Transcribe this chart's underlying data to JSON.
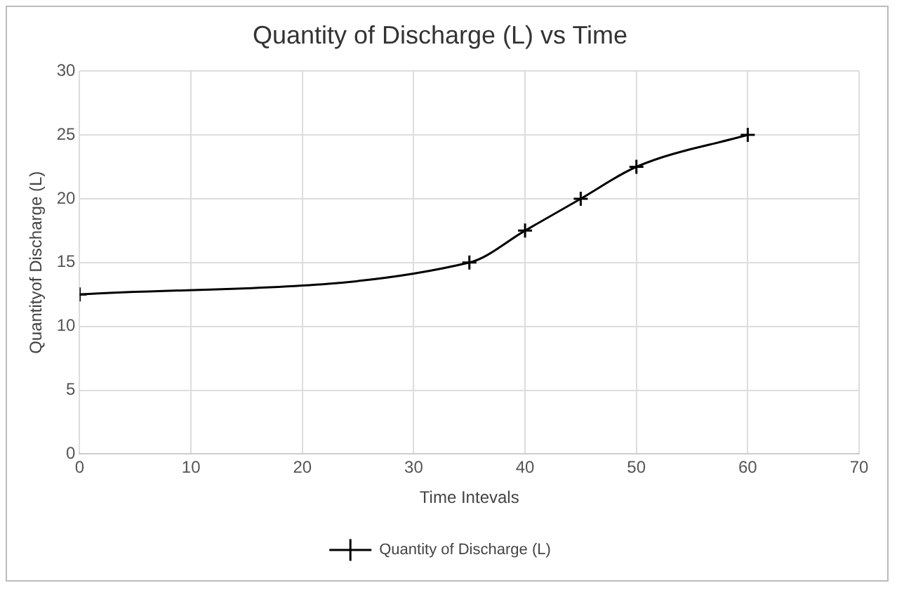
{
  "chart_data": {
    "type": "line",
    "title": "Quantity of Discharge (L) vs Time",
    "xlabel": "Time Intevals",
    "ylabel": "Quantityof Discharge (L)",
    "x": [
      0,
      35,
      40,
      45,
      50,
      60
    ],
    "series": [
      {
        "name": "Quantity of Discharge (L)",
        "color": "#000000",
        "values": [
          12.5,
          15,
          17.5,
          20,
          22.5,
          25
        ]
      }
    ],
    "xlim": [
      0,
      70
    ],
    "xticks": [
      0,
      10,
      20,
      30,
      40,
      50,
      60,
      70
    ],
    "ylim": [
      0,
      30
    ],
    "yticks": [
      0,
      5,
      10,
      15,
      20,
      25,
      30
    ],
    "grid": true,
    "legend": "bottom",
    "marker": "cross",
    "line_style": "solid"
  }
}
